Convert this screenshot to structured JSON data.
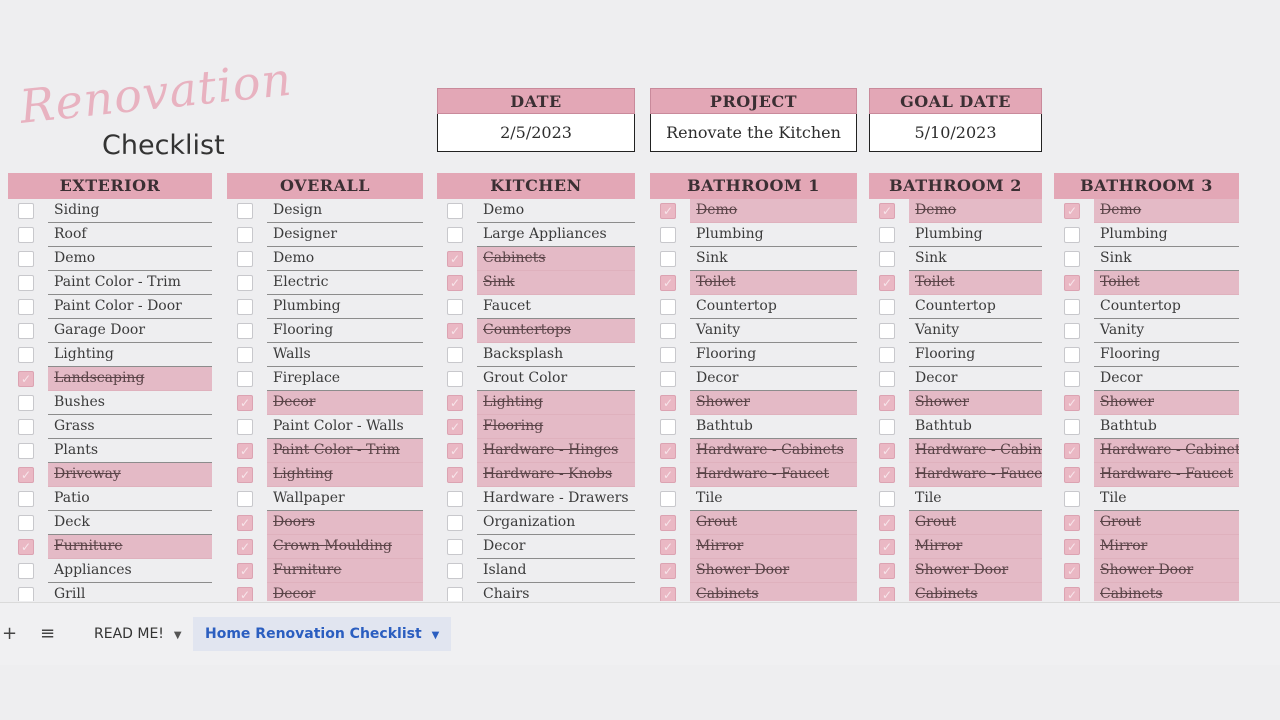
{
  "logo": {
    "script": "Renovation",
    "main": "Checklist"
  },
  "info": [
    {
      "label": "DATE",
      "value": "2/5/2023"
    },
    {
      "label": "PROJECT",
      "value": "Renovate the Kitchen"
    },
    {
      "label": "GOAL DATE",
      "value": "5/10/2023"
    }
  ],
  "checkmark_glyph": "✓",
  "columns": [
    {
      "title": "EXTERIOR",
      "items": [
        {
          "label": "Siding",
          "done": false
        },
        {
          "label": "Roof",
          "done": false
        },
        {
          "label": "Demo",
          "done": false
        },
        {
          "label": "Paint Color - Trim",
          "done": false
        },
        {
          "label": "Paint Color - Door",
          "done": false
        },
        {
          "label": "Garage Door",
          "done": false
        },
        {
          "label": "Lighting",
          "done": false
        },
        {
          "label": "Landscaping",
          "done": true
        },
        {
          "label": "Bushes",
          "done": false
        },
        {
          "label": "Grass",
          "done": false
        },
        {
          "label": "Plants",
          "done": false
        },
        {
          "label": "Driveway",
          "done": true
        },
        {
          "label": "Patio",
          "done": false
        },
        {
          "label": "Deck",
          "done": false
        },
        {
          "label": "Furniture",
          "done": true
        },
        {
          "label": "Appliances",
          "done": false
        },
        {
          "label": "Grill",
          "done": false
        }
      ]
    },
    {
      "title": "OVERALL",
      "items": [
        {
          "label": "Design",
          "done": false
        },
        {
          "label": "Designer",
          "done": false
        },
        {
          "label": "Demo",
          "done": false
        },
        {
          "label": "Electric",
          "done": false
        },
        {
          "label": "Plumbing",
          "done": false
        },
        {
          "label": "Flooring",
          "done": false
        },
        {
          "label": "Walls",
          "done": false
        },
        {
          "label": "Fireplace",
          "done": false
        },
        {
          "label": "Decor",
          "done": true
        },
        {
          "label": "Paint Color - Walls",
          "done": false
        },
        {
          "label": "Paint Color - Trim",
          "done": true
        },
        {
          "label": "Lighting",
          "done": true
        },
        {
          "label": "Wallpaper",
          "done": false
        },
        {
          "label": "Doors",
          "done": true
        },
        {
          "label": "Crown Moulding",
          "done": true
        },
        {
          "label": "Furniture",
          "done": true
        },
        {
          "label": "Decor",
          "done": true
        }
      ]
    },
    {
      "title": "KITCHEN",
      "items": [
        {
          "label": "Demo",
          "done": false
        },
        {
          "label": "Large Appliances",
          "done": false
        },
        {
          "label": "Cabinets",
          "done": true
        },
        {
          "label": "Sink",
          "done": true
        },
        {
          "label": "Faucet",
          "done": false
        },
        {
          "label": "Countertops",
          "done": true
        },
        {
          "label": "Backsplash",
          "done": false
        },
        {
          "label": "Grout Color",
          "done": false
        },
        {
          "label": "Lighting",
          "done": true
        },
        {
          "label": "Flooring",
          "done": true
        },
        {
          "label": "Hardware - Hinges",
          "done": true
        },
        {
          "label": "Hardware - Knobs",
          "done": true
        },
        {
          "label": "Hardware - Drawers",
          "done": false
        },
        {
          "label": "Organization",
          "done": false
        },
        {
          "label": "Decor",
          "done": false
        },
        {
          "label": "Island",
          "done": false
        },
        {
          "label": "Chairs",
          "done": false
        }
      ]
    },
    {
      "title": "BATHROOM 1",
      "items": [
        {
          "label": "Demo",
          "done": true
        },
        {
          "label": "Plumbing",
          "done": false
        },
        {
          "label": "Sink",
          "done": false
        },
        {
          "label": "Toilet",
          "done": true
        },
        {
          "label": "Countertop",
          "done": false
        },
        {
          "label": "Vanity",
          "done": false
        },
        {
          "label": "Flooring",
          "done": false
        },
        {
          "label": "Decor",
          "done": false
        },
        {
          "label": "Shower",
          "done": true
        },
        {
          "label": "Bathtub",
          "done": false
        },
        {
          "label": "Hardware - Cabinets",
          "done": true
        },
        {
          "label": "Hardware - Faucet",
          "done": true
        },
        {
          "label": "Tile",
          "done": false
        },
        {
          "label": "Grout",
          "done": true
        },
        {
          "label": "Mirror",
          "done": true
        },
        {
          "label": "Shower Door",
          "done": true
        },
        {
          "label": "Cabinets",
          "done": true
        }
      ]
    },
    {
      "title": "BATHROOM 2",
      "items": [
        {
          "label": "Demo",
          "done": true
        },
        {
          "label": "Plumbing",
          "done": false
        },
        {
          "label": "Sink",
          "done": false
        },
        {
          "label": "Toilet",
          "done": true
        },
        {
          "label": "Countertop",
          "done": false
        },
        {
          "label": "Vanity",
          "done": false
        },
        {
          "label": "Flooring",
          "done": false
        },
        {
          "label": "Decor",
          "done": false
        },
        {
          "label": "Shower",
          "done": true
        },
        {
          "label": "Bathtub",
          "done": false
        },
        {
          "label": "Hardware - Cabinets",
          "done": true
        },
        {
          "label": "Hardware - Faucet",
          "done": true
        },
        {
          "label": "Tile",
          "done": false
        },
        {
          "label": "Grout",
          "done": true
        },
        {
          "label": "Mirror",
          "done": true
        },
        {
          "label": "Shower Door",
          "done": true
        },
        {
          "label": "Cabinets",
          "done": true
        }
      ]
    },
    {
      "title": "BATHROOM 3",
      "items": [
        {
          "label": "Demo",
          "done": true
        },
        {
          "label": "Plumbing",
          "done": false
        },
        {
          "label": "Sink",
          "done": false
        },
        {
          "label": "Toilet",
          "done": true
        },
        {
          "label": "Countertop",
          "done": false
        },
        {
          "label": "Vanity",
          "done": false
        },
        {
          "label": "Flooring",
          "done": false
        },
        {
          "label": "Decor",
          "done": false
        },
        {
          "label": "Shower",
          "done": true
        },
        {
          "label": "Bathtub",
          "done": false
        },
        {
          "label": "Hardware - Cabinets",
          "done": true
        },
        {
          "label": "Hardware - Faucet",
          "done": true
        },
        {
          "label": "Tile",
          "done": false
        },
        {
          "label": "Grout",
          "done": true
        },
        {
          "label": "Mirror",
          "done": true
        },
        {
          "label": "Shower Door",
          "done": true
        },
        {
          "label": "Cabinets",
          "done": true
        }
      ]
    }
  ],
  "bottombar": {
    "add_icon": "+",
    "menu_icon": "≡",
    "tabs": [
      {
        "label": "READ ME!",
        "arrow": "▼",
        "active": false
      },
      {
        "label": "Home Renovation Checklist",
        "arrow": "▼",
        "active": true
      }
    ]
  },
  "colors": {
    "header_pink": "#e3a7b6",
    "done_row_pink": "#e4bac6",
    "active_tab_text": "#2b5ec0"
  }
}
